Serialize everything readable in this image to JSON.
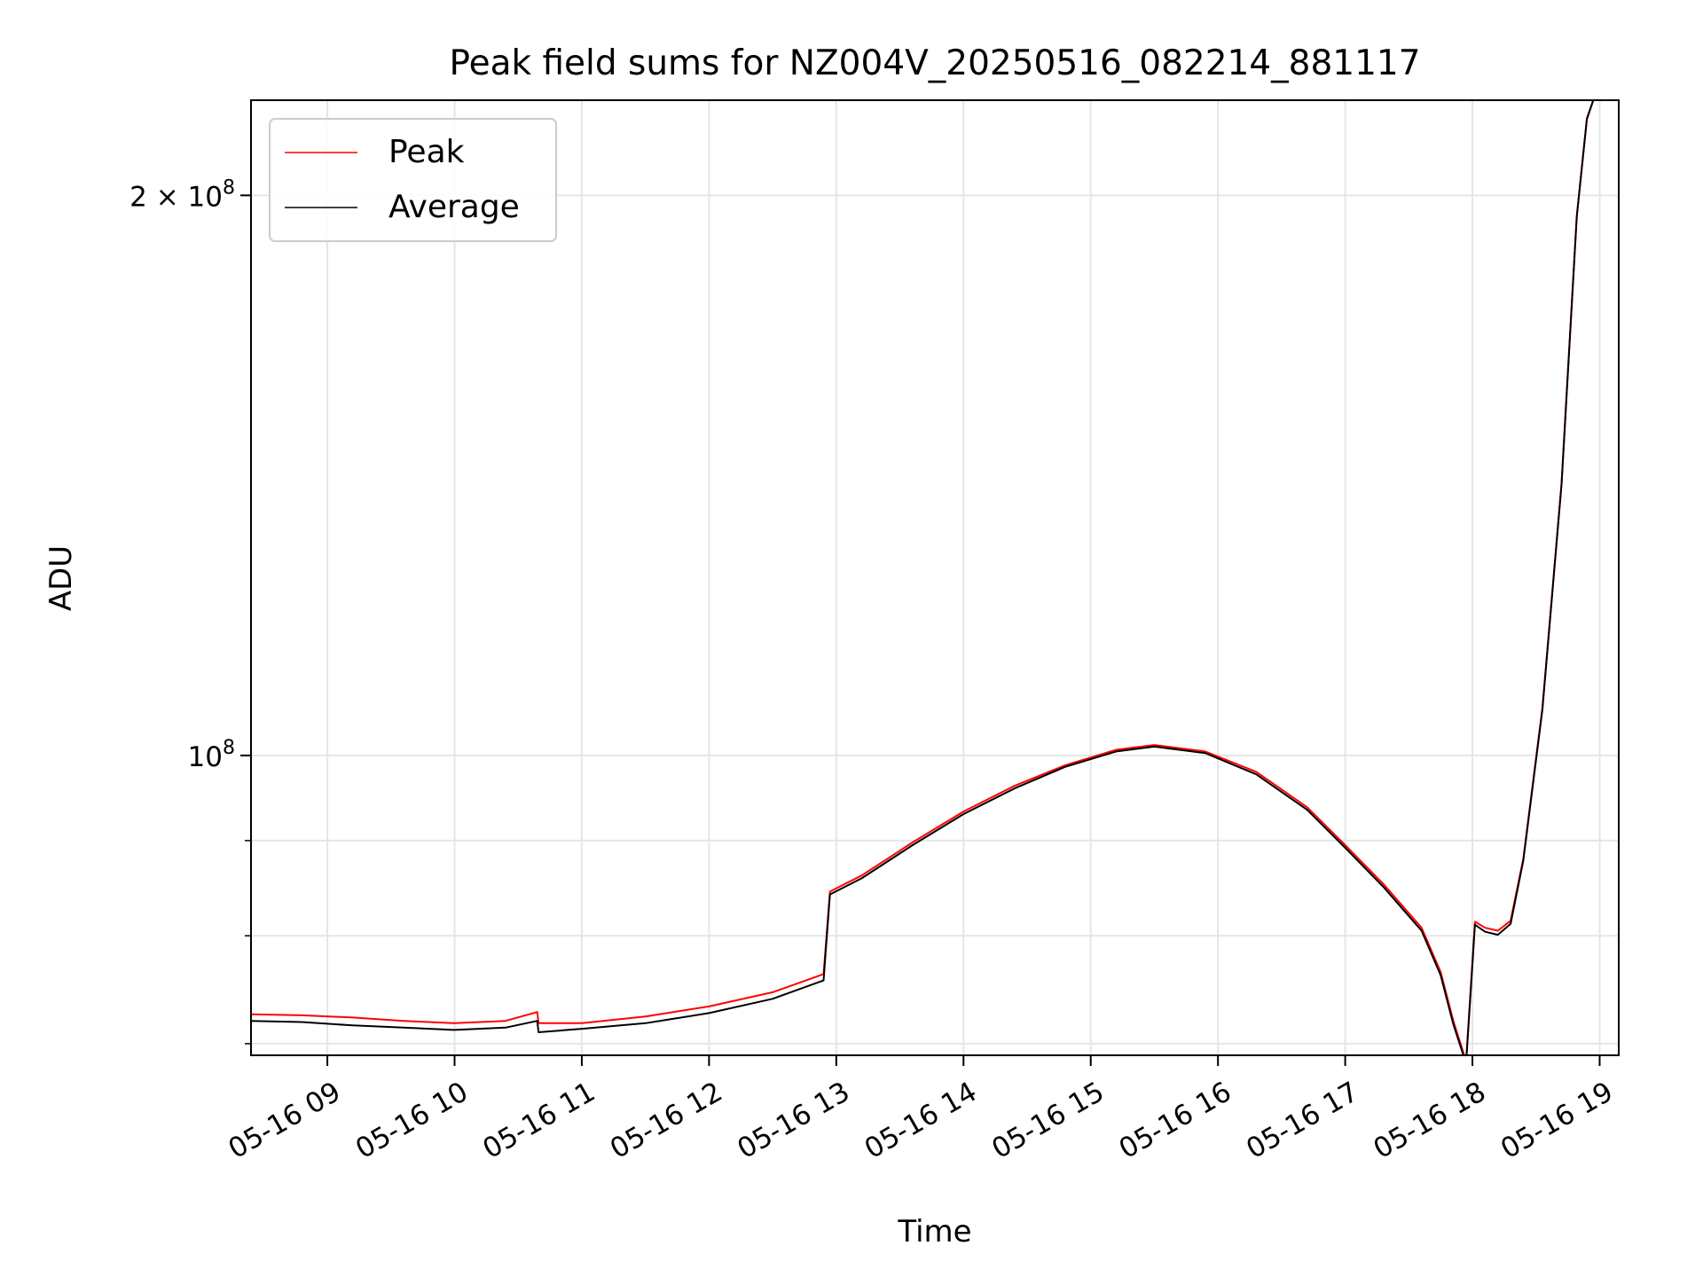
{
  "chart_data": {
    "type": "line",
    "title": "Peak field sums for NZ004V_20250516_082214_881117",
    "xlabel": "Time",
    "ylabel": "ADU",
    "x_unit": "hours",
    "y_scale": "log",
    "xlim": [
      8.4,
      19.15
    ],
    "ylim": [
      69000000,
      225000000
    ],
    "grid": true,
    "legend_position": "upper-left",
    "x_ticks": [
      {
        "value": 9,
        "label": "05-16 09"
      },
      {
        "value": 10,
        "label": "05-16 10"
      },
      {
        "value": 11,
        "label": "05-16 11"
      },
      {
        "value": 12,
        "label": "05-16 12"
      },
      {
        "value": 13,
        "label": "05-16 13"
      },
      {
        "value": 14,
        "label": "05-16 14"
      },
      {
        "value": 15,
        "label": "05-16 15"
      },
      {
        "value": 16,
        "label": "05-16 16"
      },
      {
        "value": 17,
        "label": "05-16 17"
      },
      {
        "value": 18,
        "label": "05-16 18"
      },
      {
        "value": 19,
        "label": "05-16 19"
      }
    ],
    "y_major_ticks": [
      {
        "value": 100000000,
        "base": "10",
        "exp": "8",
        "coef": ""
      },
      {
        "value": 200000000,
        "base": "10",
        "exp": "8",
        "coef": "2 × "
      }
    ],
    "y_minor_ticks": [
      70000000,
      80000000,
      90000000
    ],
    "series": [
      {
        "name": "Peak",
        "color": "#ff0000",
        "x": [
          8.4,
          8.8,
          9.2,
          9.6,
          10.0,
          10.4,
          10.65,
          10.66,
          11.0,
          11.5,
          12.0,
          12.5,
          12.9,
          12.95,
          13.2,
          13.6,
          14.0,
          14.4,
          14.8,
          15.2,
          15.5,
          15.9,
          16.3,
          16.7,
          17.0,
          17.3,
          17.6,
          17.75,
          17.85,
          17.95,
          18.02,
          18.1,
          18.2,
          18.3,
          18.4,
          18.55,
          18.7,
          18.82,
          18.9,
          18.95,
          19.15
        ],
        "y": [
          72600000,
          72500000,
          72300000,
          72000000,
          71800000,
          72000000,
          72800000,
          71800000,
          71800000,
          72400000,
          73300000,
          74600000,
          76300000,
          84500000,
          86200000,
          89800000,
          93300000,
          96300000,
          98800000,
          100700000,
          101300000,
          100500000,
          98000000,
          93800000,
          89500000,
          85300000,
          80800000,
          76500000,
          72000000,
          68500000,
          81400000,
          80800000,
          80500000,
          81500000,
          88000000,
          106000000,
          140000000,
          195000000,
          220000000,
          225000000,
          225000000
        ]
      },
      {
        "name": "Average",
        "color": "#000000",
        "x": [
          8.4,
          8.8,
          9.2,
          9.6,
          10.0,
          10.4,
          10.65,
          10.66,
          11.0,
          11.5,
          12.0,
          12.5,
          12.9,
          12.95,
          13.2,
          13.6,
          14.0,
          14.4,
          14.8,
          15.2,
          15.5,
          15.9,
          16.3,
          16.7,
          17.0,
          17.3,
          17.6,
          17.75,
          17.85,
          17.95,
          18.02,
          18.1,
          18.2,
          18.3,
          18.4,
          18.55,
          18.7,
          18.82,
          18.9,
          18.95,
          19.15
        ],
        "y": [
          72000000,
          71900000,
          71600000,
          71400000,
          71200000,
          71400000,
          72000000,
          71000000,
          71300000,
          71800000,
          72700000,
          74000000,
          75700000,
          84200000,
          85900000,
          89500000,
          93000000,
          96000000,
          98600000,
          100500000,
          101100000,
          100300000,
          97700000,
          93500000,
          89200000,
          85000000,
          80500000,
          76200000,
          71700000,
          68300000,
          81100000,
          80400000,
          80100000,
          81200000,
          87800000,
          105800000,
          139800000,
          194800000,
          219800000,
          225000000,
          225000000
        ]
      }
    ]
  }
}
